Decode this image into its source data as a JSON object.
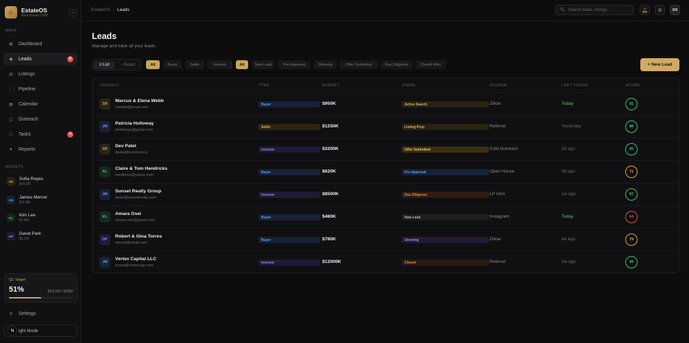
{
  "brand": {
    "name": "EstateOS",
    "sub": "Real Estate CRM"
  },
  "sidebar": {
    "main_label": "MAIN",
    "nav": [
      {
        "label": "Dashboard",
        "icon": "grid-icon",
        "glyph": "▦",
        "badge": "",
        "active": false
      },
      {
        "label": "Leads",
        "icon": "target-icon",
        "glyph": "◉",
        "badge": "8",
        "active": true
      },
      {
        "label": "Listings",
        "icon": "building-icon",
        "glyph": "▤",
        "badge": "",
        "active": false
      },
      {
        "label": "Pipeline",
        "icon": "kanban-icon",
        "glyph": "⋮⋮",
        "badge": "",
        "active": false
      },
      {
        "label": "Calendar",
        "icon": "calendar-icon",
        "glyph": "▦",
        "badge": "",
        "active": false
      },
      {
        "label": "Outreach",
        "icon": "send-icon",
        "glyph": "◫",
        "badge": "",
        "active": false
      },
      {
        "label": "Tasks",
        "icon": "checkbox-icon",
        "glyph": "☐",
        "badge": "4",
        "active": false
      },
      {
        "label": "Reports",
        "icon": "chart-icon",
        "glyph": "▲",
        "badge": "",
        "active": false
      }
    ],
    "agents_label": "AGENTS",
    "agents": [
      {
        "initials": "SR",
        "name": "Sofia Reyes",
        "value": "$14.2M",
        "color": "#c9a35b",
        "bg": "#2a2418"
      },
      {
        "initials": "JM",
        "name": "James Mercer",
        "value": "$11.8M",
        "color": "#6a9ee8",
        "bg": "#182236"
      },
      {
        "initials": "KL",
        "name": "Kim Lee",
        "value": "$7.4M",
        "color": "#4fc47a",
        "bg": "#16291d"
      },
      {
        "initials": "DP",
        "name": "David Park",
        "value": "$3.1M",
        "color": "#9a86e8",
        "bg": "#221c36"
      }
    ],
    "target": {
      "label": "Q1 Target",
      "percent": "51%",
      "amount": "$14.2M / $28M",
      "progress": 0.51
    },
    "settings_label": "Settings",
    "mode_label": "ight Mode"
  },
  "topbar": {
    "crumb_root": "EstateOS",
    "crumb_sep": "›",
    "crumb_current": "Leads",
    "search_placeholder": "Search leads, listings...",
    "avatar": "SR"
  },
  "page": {
    "title": "Leads",
    "subtitle": "Manage and track all your leads."
  },
  "view_toggle": {
    "list": "≡ List",
    "board": "▫ Board"
  },
  "type_filters": [
    "All",
    "Buyer",
    "Seller",
    "Investor"
  ],
  "stage_filters": [
    "All",
    "New Lead",
    "Pre-Approval",
    "Showing",
    "Offer Submitted",
    "Due Diligence",
    "Closed Won"
  ],
  "new_lead_label": "+ New Lead",
  "table": {
    "headers": [
      "CONTACT",
      "TYPE",
      "BUDGET",
      "STAGE",
      "SOURCE",
      "LAST TOUCH",
      "SCORE"
    ],
    "rows": [
      {
        "initials": "SR",
        "av_color": "#c9a35b",
        "av_bg": "#2a2418",
        "name": "Marcus & Elena Webb",
        "email": "mwebb@email.com",
        "type": "Buyer",
        "type_color": "#6a9ee8",
        "type_bg": "#152238",
        "budget": "$950K",
        "stage": "Active Search",
        "stage_color": "#e0b45a",
        "stage_bg": "#2a2212",
        "source": "Zillow",
        "touch": "Today",
        "touch_color": "#4fc47a",
        "score": "92",
        "score_color": "#3fc46e"
      },
      {
        "initials": "JM",
        "av_color": "#6a9ee8",
        "av_bg": "#182236",
        "name": "Patricia Holloway",
        "email": "pholloway@gmail.com",
        "type": "Seller",
        "type_color": "#e0b45a",
        "type_bg": "#2e2510",
        "budget": "$1250K",
        "stage": "Listing Prep",
        "stage_color": "#e0b45a",
        "stage_bg": "#2a2212",
        "source": "Referral",
        "touch": "Yesterday",
        "touch_color": "#6a6a6a",
        "score": "88",
        "score_color": "#3fc46e"
      },
      {
        "initials": "SR",
        "av_color": "#c9a35b",
        "av_bg": "#2a2418",
        "name": "Dev Patel",
        "email": "dpatel@ventures.io",
        "type": "Investor",
        "type_color": "#9a86e8",
        "type_bg": "#1f1a36",
        "budget": "$3200K",
        "stage": "Offer Submitted",
        "stage_color": "#e6c06a",
        "stage_bg": "#3a2e14",
        "source": "Cold Outreach",
        "touch": "2d ago",
        "touch_color": "#6a6a6a",
        "score": "95",
        "score_color": "#3fc46e"
      },
      {
        "initials": "KL",
        "av_color": "#4fc47a",
        "av_bg": "#16291d",
        "name": "Claire & Tom Hendricks",
        "email": "hendricks@yahoo.com",
        "type": "Buyer",
        "type_color": "#6a9ee8",
        "type_bg": "#152238",
        "budget": "$620K",
        "stage": "Pre-Approval",
        "stage_color": "#6a9ee8",
        "stage_bg": "#152238",
        "source": "Open House",
        "touch": "3d ago",
        "touch_color": "#6a6a6a",
        "score": "71",
        "score_color": "#e0a83a"
      },
      {
        "initials": "JM",
        "av_color": "#6a9ee8",
        "av_bg": "#182236",
        "name": "Sunset Realty Group",
        "email": "deals@sunsetrealty.com",
        "type": "Investor",
        "type_color": "#9a86e8",
        "type_bg": "#1f1a36",
        "budget": "$8500K",
        "stage": "Due Diligence",
        "stage_color": "#e88a4a",
        "stage_bg": "#301d12",
        "source": "LP Intro",
        "touch": "1w ago",
        "touch_color": "#6a6a6a",
        "score": "97",
        "score_color": "#3fc46e"
      },
      {
        "initials": "KL",
        "av_color": "#4fc47a",
        "av_bg": "#16291d",
        "name": "Amara Osei",
        "email": "amara.osei@gmail.com",
        "type": "Buyer",
        "type_color": "#6a9ee8",
        "type_bg": "#152238",
        "budget": "$480K",
        "stage": "New Lead",
        "stage_color": "#bdbdbd",
        "stage_bg": "#1e1e21",
        "source": "Instagram",
        "touch": "Today",
        "touch_color": "#4fc47a",
        "score": "64",
        "score_color": "#e0524b"
      },
      {
        "initials": "DP",
        "av_color": "#9a86e8",
        "av_bg": "#221c36",
        "name": "Robert & Gina Torres",
        "email": "rtorres@email.com",
        "type": "Buyer",
        "type_color": "#6a9ee8",
        "type_bg": "#152238",
        "budget": "$780K",
        "stage": "Showing",
        "stage_color": "#a88ae8",
        "stage_bg": "#221a36",
        "source": "Zillow",
        "touch": "4d ago",
        "touch_color": "#6a6a6a",
        "score": "79",
        "score_color": "#e0a83a"
      },
      {
        "initials": "JM",
        "av_color": "#6a9ee8",
        "av_bg": "#182236",
        "name": "Vertex Capital LLC",
        "email": "invest@vertexcap.com",
        "type": "Investor",
        "type_color": "#9a86e8",
        "type_bg": "#1f1a36",
        "budget": "$12000K",
        "stage": "Closed",
        "stage_color": "#e88a4a",
        "stage_bg": "#2a1b12",
        "source": "Referral",
        "touch": "2w ago",
        "touch_color": "#6a6a6a",
        "score": "99",
        "score_color": "#3fc46e"
      }
    ]
  }
}
